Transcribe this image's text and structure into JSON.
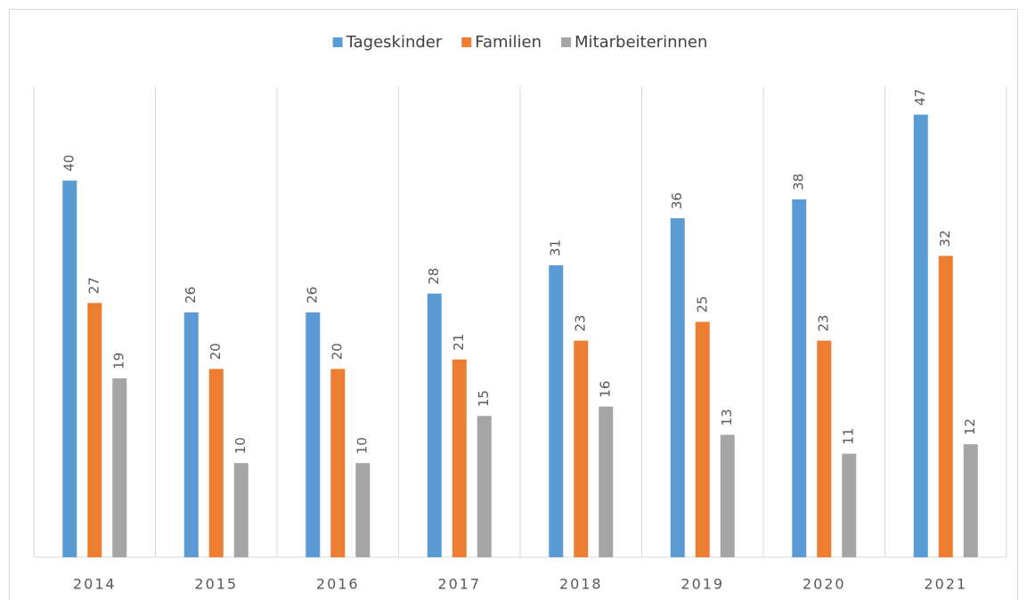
{
  "chart_data": {
    "type": "bar",
    "categories": [
      "2014",
      "2015",
      "2016",
      "2017",
      "2018",
      "2019",
      "2020",
      "2021"
    ],
    "series": [
      {
        "name": "Tageskinder",
        "color": "#5b9bd5",
        "values": [
          40,
          26,
          26,
          28,
          31,
          36,
          38,
          47
        ]
      },
      {
        "name": "Familien",
        "color": "#ed7d31",
        "values": [
          27,
          20,
          20,
          21,
          23,
          25,
          23,
          32
        ]
      },
      {
        "name": "Mitarbeiterinnen",
        "color": "#a5a5a5",
        "values": [
          19,
          10,
          10,
          15,
          16,
          13,
          11,
          12
        ]
      }
    ],
    "ylim": [
      0,
      50
    ],
    "legend": "top",
    "grid": "vertical"
  }
}
